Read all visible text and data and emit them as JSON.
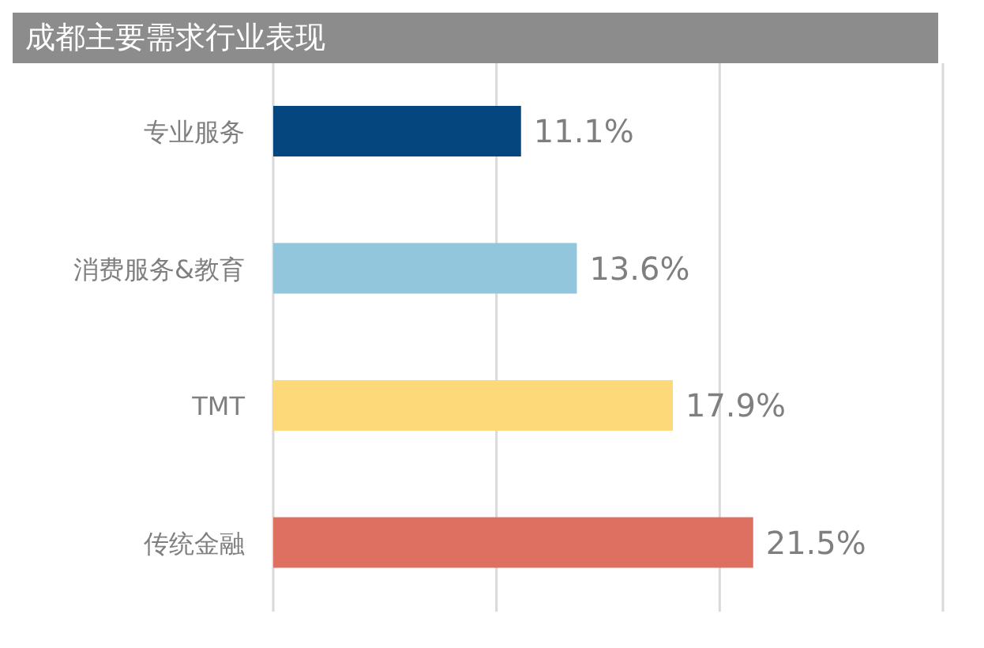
{
  "chart_data": {
    "type": "bar",
    "orientation": "horizontal",
    "title": "成都主要需求行业表现",
    "categories": [
      "专业服务",
      "消费服务&教育",
      "TMT",
      "传统金融"
    ],
    "values": [
      11.1,
      13.6,
      17.9,
      21.5
    ],
    "colors": [
      "#06467f",
      "#92c6dc",
      "#fdd97a",
      "#dd7060"
    ],
    "value_labels": [
      "11.1%",
      "13.6%",
      "17.9%",
      "21.5%"
    ],
    "xlim": [
      0,
      30
    ],
    "xticks": [
      {
        "value": 0,
        "label": null
      },
      {
        "value": 10,
        "label": null
      },
      {
        "value": 20,
        "label": null
      },
      {
        "value": 30,
        "label": null
      }
    ],
    "grid": "x",
    "tick_labels": "y"
  }
}
